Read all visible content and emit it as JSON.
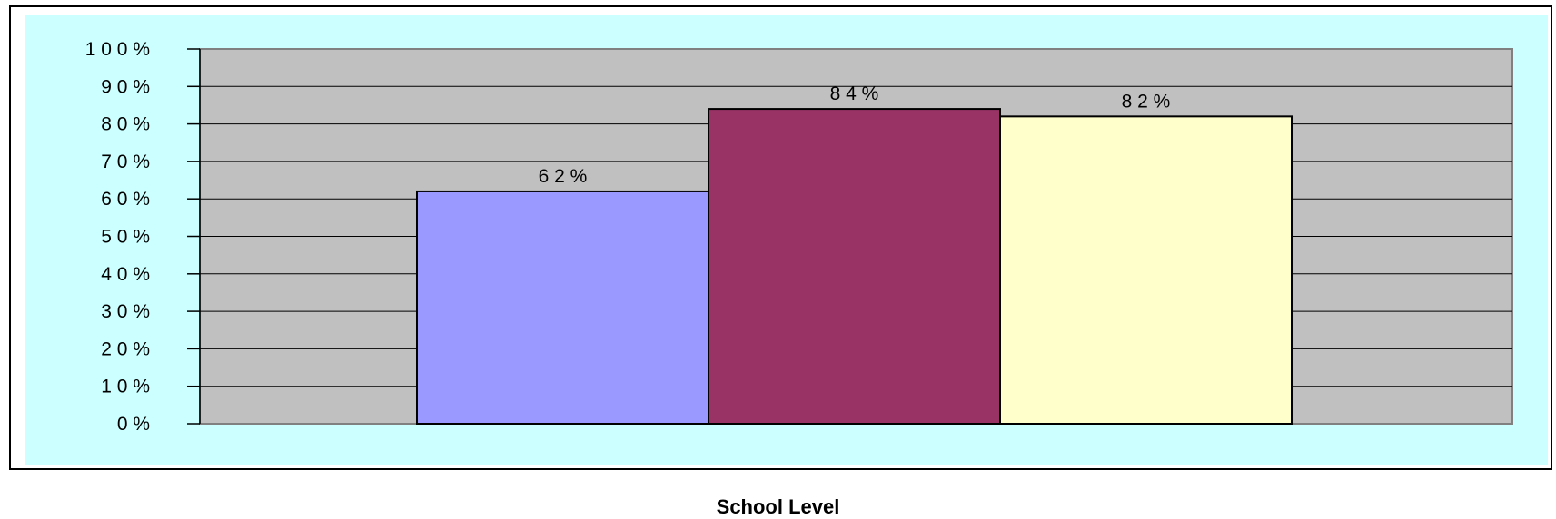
{
  "chart_data": {
    "type": "bar",
    "xlabel": "School Level",
    "ylabel": "",
    "ylim": [
      0,
      100
    ],
    "y_ticks": [
      "0 %",
      "1 0 %",
      "2 0 %",
      "3 0 %",
      "4 0 %",
      "5 0 %",
      "6 0 %",
      "7 0 %",
      "8 0 %",
      "9 0 %",
      "1 0 0 %"
    ],
    "series": [
      {
        "value": 62,
        "label": "6 2 %",
        "color": "#9999FF"
      },
      {
        "value": 84,
        "label": "8 4 %",
        "color": "#993366"
      },
      {
        "value": 82,
        "label": "8 2 %",
        "color": "#FFFFCC"
      }
    ],
    "grid": true,
    "colors": {
      "chart_area": "#CCFFFF",
      "plot_area": "#C0C0C0",
      "gridline": "#000000"
    }
  }
}
